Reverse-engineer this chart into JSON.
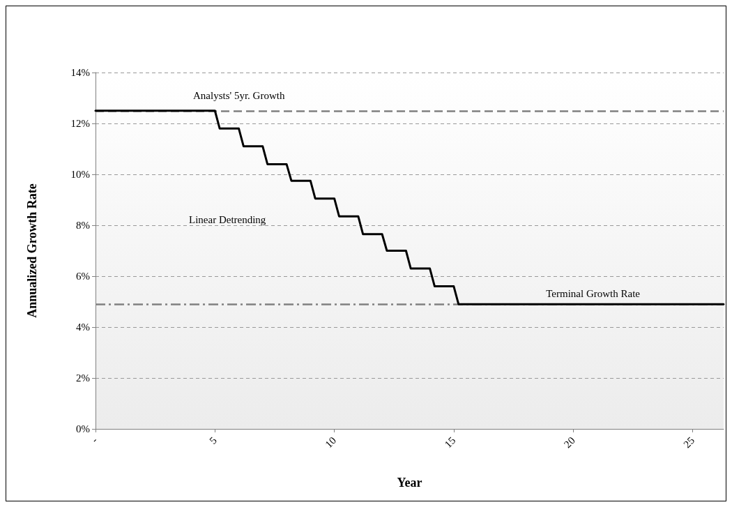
{
  "chart_data": {
    "type": "line",
    "xlabel": "Year",
    "ylabel": "Annualized Growth Rate",
    "series": [
      {
        "color": "#000000",
        "x": [
          0,
          5,
          5.2,
          6,
          6.2,
          7,
          7.2,
          8,
          8.2,
          9,
          9.2,
          10,
          10.2,
          11,
          11.2,
          12,
          12.2,
          13,
          13.2,
          14,
          14.2,
          15,
          15.2,
          26.3
        ],
        "values": [
          12.5,
          12.5,
          11.8,
          11.8,
          11.1,
          11.1,
          10.4,
          10.4,
          9.75,
          9.75,
          9.05,
          9.05,
          8.35,
          8.35,
          7.65,
          7.65,
          7.0,
          7.0,
          6.3,
          6.3,
          5.6,
          5.6,
          4.9,
          4.9
        ]
      }
    ],
    "xlim": [
      0,
      26.3
    ],
    "xticks": [
      {
        "value": 0,
        "label": "-"
      },
      5,
      10,
      15,
      20,
      25
    ],
    "ylim": [
      0,
      14
    ],
    "yticks": [
      {
        "value": 0,
        "label": "0%"
      },
      {
        "value": 2,
        "label": "2%"
      },
      {
        "value": 4,
        "label": "4%"
      },
      {
        "value": 6,
        "label": "6%"
      },
      {
        "value": 8,
        "label": "8%"
      },
      {
        "value": 10,
        "label": "10%"
      },
      {
        "value": 12,
        "label": "12%"
      },
      {
        "value": 14,
        "label": "14%"
      }
    ],
    "ref_lines": [
      {
        "axis": "y",
        "value": 12.5,
        "label": "Analysts' 5yr. Growth",
        "color": "#808080",
        "line_style": "dashed"
      },
      {
        "axis": "y",
        "value": 4.9,
        "label": "Terminal Growth Rate",
        "color": "#808080",
        "line_style": "dashdot"
      }
    ],
    "annotations": [
      "Linear Detrending"
    ],
    "grid": "y",
    "marker": "none",
    "line_style": "solid"
  }
}
